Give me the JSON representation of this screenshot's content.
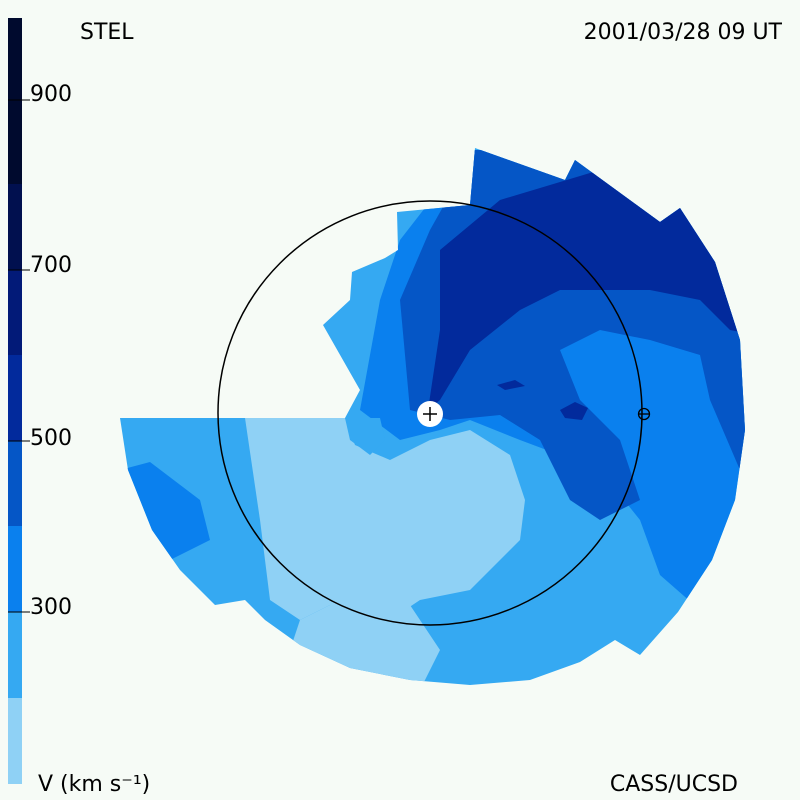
{
  "header": {
    "title": "STEL",
    "timestamp": "2001/03/28 09 UT"
  },
  "footer": {
    "credit": "CASS/UCSD"
  },
  "legend": {
    "unit_label": "V (km s⁻¹)",
    "ticks": [
      "900",
      "700",
      "500",
      "300"
    ],
    "levels": [
      {
        "min": 200,
        "max": 300,
        "color": "#8fd1f5"
      },
      {
        "min": 300,
        "max": 400,
        "color": "#35a9f2"
      },
      {
        "min": 400,
        "max": 500,
        "color": "#0a80ee"
      },
      {
        "min": 500,
        "max": 600,
        "color": "#0556c6"
      },
      {
        "min": 600,
        "max": 700,
        "color": "#022a9c"
      },
      {
        "min": 700,
        "max": 800,
        "color": "#021a78"
      },
      {
        "min": 800,
        "max": 900,
        "color": "#01104f"
      },
      {
        "min": 900,
        "max": 1000,
        "color": "#000a2e"
      }
    ]
  },
  "map": {
    "sun_symbol": "+",
    "earth_symbol": "⊕"
  }
}
